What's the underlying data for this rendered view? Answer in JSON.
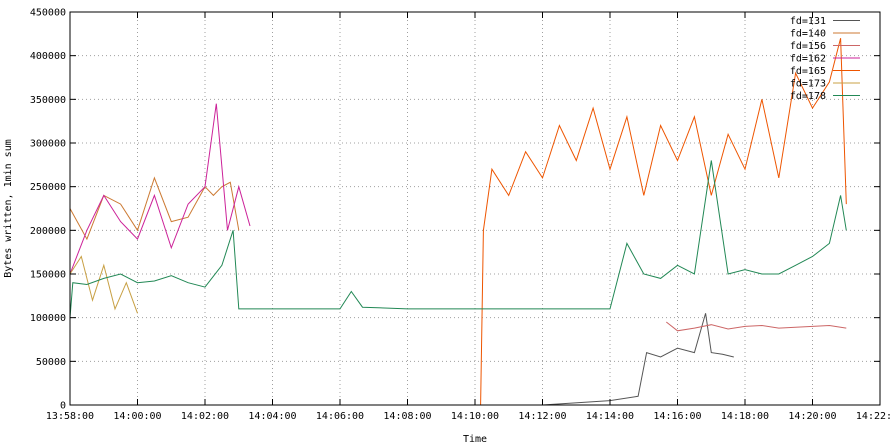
{
  "chart_data": {
    "type": "line",
    "title": "",
    "xlabel": "Time",
    "ylabel": "Bytes written, 1min sum",
    "xlim": [
      "13:58:00",
      "14:22:00"
    ],
    "ylim": [
      0,
      450000
    ],
    "x_ticks": [
      "13:58:00",
      "14:00:00",
      "14:02:00",
      "14:04:00",
      "14:06:00",
      "14:08:00",
      "14:10:00",
      "14:12:00",
      "14:14:00",
      "14:16:00",
      "14:18:00",
      "14:20:00",
      "14:22:00"
    ],
    "y_ticks": [
      "0",
      "50000",
      "100000",
      "150000",
      "200000",
      "250000",
      "300000",
      "350000",
      "400000",
      "450000"
    ],
    "grid": true,
    "legend_position": "top-right",
    "series": [
      {
        "name": "fd=131",
        "color": "#555555",
        "x": [
          "13:58:00",
          "14:10:00",
          "14:12:00",
          "14:14:00",
          "14:14:50",
          "14:15:05",
          "14:15:30",
          "14:16:00",
          "14:16:30",
          "14:16:50",
          "14:17:00",
          "14:17:20",
          "14:17:40"
        ],
        "y": [
          0,
          0,
          0,
          5000,
          10000,
          60000,
          55000,
          65000,
          60000,
          105000,
          60000,
          58000,
          55000
        ]
      },
      {
        "name": "fd=140",
        "color": "#cc7a33",
        "x": [
          "13:58:00",
          "13:58:30",
          "13:59:00",
          "13:59:30",
          "14:00:00",
          "14:00:30",
          "14:01:00",
          "14:01:30",
          "14:02:00",
          "14:02:15",
          "14:02:30",
          "14:02:45",
          "14:03:00"
        ],
        "y": [
          225000,
          190000,
          240000,
          230000,
          200000,
          260000,
          210000,
          215000,
          250000,
          240000,
          250000,
          255000,
          200000
        ]
      },
      {
        "name": "fd=156",
        "color": "#cc6666",
        "x": [
          "14:15:40",
          "14:16:00",
          "14:16:30",
          "14:17:00",
          "14:17:30",
          "14:18:00",
          "14:18:30",
          "14:19:00",
          "14:19:30",
          "14:20:00",
          "14:20:30",
          "14:21:00"
        ],
        "y": [
          95000,
          85000,
          88000,
          92000,
          87000,
          90000,
          91000,
          88000,
          89000,
          90000,
          91000,
          88000
        ]
      },
      {
        "name": "fd=162",
        "color": "#cc2299",
        "x": [
          "13:58:00",
          "13:58:30",
          "13:59:00",
          "13:59:30",
          "14:00:00",
          "14:00:30",
          "14:01:00",
          "14:01:30",
          "14:02:00",
          "14:02:20",
          "14:02:40",
          "14:03:00",
          "14:03:20"
        ],
        "y": [
          150000,
          200000,
          240000,
          210000,
          190000,
          240000,
          180000,
          230000,
          250000,
          345000,
          200000,
          250000,
          205000
        ]
      },
      {
        "name": "fd=165",
        "color": "#ee5500",
        "x": [
          "13:58:00",
          "14:10:10",
          "14:10:15",
          "14:10:30",
          "14:11:00",
          "14:11:30",
          "14:12:00",
          "14:12:30",
          "14:13:00",
          "14:13:30",
          "14:14:00",
          "14:14:30",
          "14:15:00",
          "14:15:30",
          "14:16:00",
          "14:16:30",
          "14:17:00",
          "14:17:30",
          "14:18:00",
          "14:18:30",
          "14:19:00",
          "14:19:30",
          "14:20:00",
          "14:20:30",
          "14:20:50",
          "14:21:00"
        ],
        "y": [
          0,
          0,
          200000,
          270000,
          240000,
          290000,
          260000,
          320000,
          280000,
          340000,
          270000,
          330000,
          240000,
          320000,
          280000,
          330000,
          240000,
          310000,
          270000,
          350000,
          260000,
          380000,
          340000,
          370000,
          420000,
          230000
        ]
      },
      {
        "name": "fd=173",
        "color": "#c8a044",
        "x": [
          "13:58:00",
          "13:58:20",
          "13:58:40",
          "13:59:00",
          "13:59:20",
          "13:59:40",
          "14:00:00"
        ],
        "y": [
          150000,
          170000,
          120000,
          160000,
          110000,
          140000,
          105000
        ]
      },
      {
        "name": "fd=178",
        "color": "#228855",
        "x": [
          "13:58:00",
          "13:58:05",
          "13:58:30",
          "13:59:00",
          "13:59:30",
          "14:00:00",
          "14:00:30",
          "14:01:00",
          "14:01:30",
          "14:02:00",
          "14:02:30",
          "14:02:50",
          "14:03:00",
          "14:04:00",
          "14:06:00",
          "14:06:20",
          "14:06:40",
          "14:08:00",
          "14:10:00",
          "14:12:00",
          "14:14:00",
          "14:14:30",
          "14:15:00",
          "14:15:30",
          "14:16:00",
          "14:16:30",
          "14:17:00",
          "14:17:30",
          "14:18:00",
          "14:18:30",
          "14:19:00",
          "14:19:30",
          "14:20:00",
          "14:20:30",
          "14:20:50",
          "14:21:00"
        ],
        "y": [
          100000,
          140000,
          138000,
          145000,
          150000,
          140000,
          142000,
          148000,
          140000,
          135000,
          160000,
          200000,
          110000,
          110000,
          110000,
          130000,
          112000,
          110000,
          110000,
          110000,
          110000,
          185000,
          150000,
          145000,
          160000,
          150000,
          280000,
          150000,
          155000,
          150000,
          150000,
          160000,
          170000,
          185000,
          240000,
          200000
        ]
      }
    ]
  }
}
